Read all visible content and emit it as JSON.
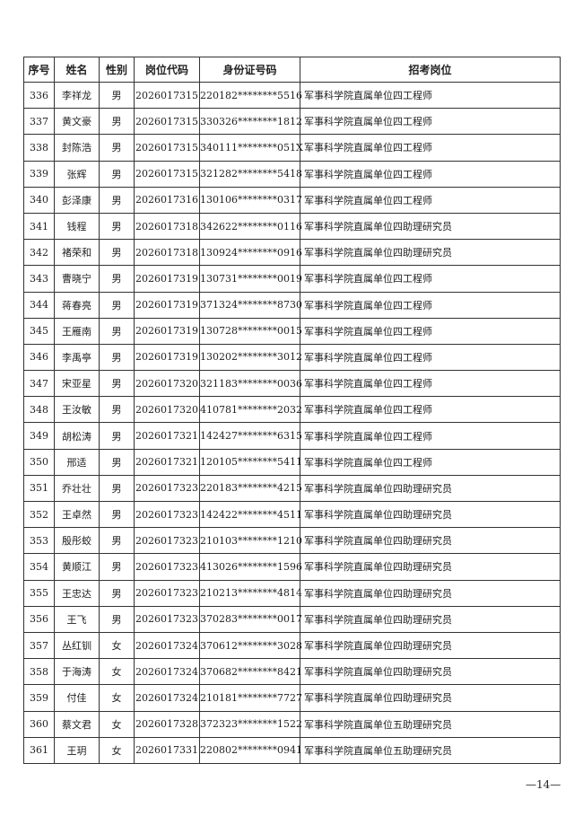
{
  "table": {
    "headers": [
      "序号",
      "姓名",
      "性别",
      "岗位代码",
      "身份证号码",
      "招考岗位"
    ],
    "rows": [
      [
        "336",
        "李祥龙",
        "男",
        "2026017315",
        "220182********5516",
        "军事科学院直属单位四工程师"
      ],
      [
        "337",
        "黄文豪",
        "男",
        "2026017315",
        "330326********1812",
        "军事科学院直属单位四工程师"
      ],
      [
        "338",
        "封陈浩",
        "男",
        "2026017315",
        "340111********051X",
        "军事科学院直属单位四工程师"
      ],
      [
        "339",
        "张辉",
        "男",
        "2026017315",
        "321282********5418",
        "军事科学院直属单位四工程师"
      ],
      [
        "340",
        "彭泽康",
        "男",
        "2026017316",
        "130106********0317",
        "军事科学院直属单位四工程师"
      ],
      [
        "341",
        "钱程",
        "男",
        "2026017318",
        "342622********0116",
        "军事科学院直属单位四助理研究员"
      ],
      [
        "342",
        "褚荣和",
        "男",
        "2026017318",
        "130924********0916",
        "军事科学院直属单位四助理研究员"
      ],
      [
        "343",
        "曹晓宁",
        "男",
        "2026017319",
        "130731********0019",
        "军事科学院直属单位四工程师"
      ],
      [
        "344",
        "蒋春亮",
        "男",
        "2026017319",
        "371324********8730",
        "军事科学院直属单位四工程师"
      ],
      [
        "345",
        "王雁南",
        "男",
        "2026017319",
        "130728********0015",
        "军事科学院直属单位四工程师"
      ],
      [
        "346",
        "李禹亭",
        "男",
        "2026017319",
        "130202********3012",
        "军事科学院直属单位四工程师"
      ],
      [
        "347",
        "宋亚星",
        "男",
        "2026017320",
        "321183********0036",
        "军事科学院直属单位四工程师"
      ],
      [
        "348",
        "王汝敏",
        "男",
        "2026017320",
        "410781********2032",
        "军事科学院直属单位四工程师"
      ],
      [
        "349",
        "胡松涛",
        "男",
        "2026017321",
        "142427********6315",
        "军事科学院直属单位四工程师"
      ],
      [
        "350",
        "邢适",
        "男",
        "2026017321",
        "120105********5411",
        "军事科学院直属单位四工程师"
      ],
      [
        "351",
        "乔壮壮",
        "男",
        "2026017323",
        "220183********4215",
        "军事科学院直属单位四助理研究员"
      ],
      [
        "352",
        "王卓然",
        "男",
        "2026017323",
        "142422********4511",
        "军事科学院直属单位四助理研究员"
      ],
      [
        "353",
        "殷彤蛟",
        "男",
        "2026017323",
        "210103********1210",
        "军事科学院直属单位四助理研究员"
      ],
      [
        "354",
        "黄顺江",
        "男",
        "2026017323",
        "413026********1596",
        "军事科学院直属单位四助理研究员"
      ],
      [
        "355",
        "王忠达",
        "男",
        "2026017323",
        "210213********4814",
        "军事科学院直属单位四助理研究员"
      ],
      [
        "356",
        "王飞",
        "男",
        "2026017323",
        "370283********0017",
        "军事科学院直属单位四助理研究员"
      ],
      [
        "357",
        "丛红钏",
        "女",
        "2026017324",
        "370612********3028",
        "军事科学院直属单位四助理研究员"
      ],
      [
        "358",
        "于海涛",
        "女",
        "2026017324",
        "370682********8421",
        "军事科学院直属单位四助理研究员"
      ],
      [
        "359",
        "付佳",
        "女",
        "2026017324",
        "210181********7727",
        "军事科学院直属单位四助理研究员"
      ],
      [
        "360",
        "蔡文君",
        "女",
        "2026017328",
        "372323********1522",
        "军事科学院直属单位五助理研究员"
      ],
      [
        "361",
        "王玥",
        "女",
        "2026017331",
        "220802********0941",
        "军事科学院直属单位五助理研究员"
      ]
    ]
  },
  "footer": {
    "page_number": "—14—"
  }
}
